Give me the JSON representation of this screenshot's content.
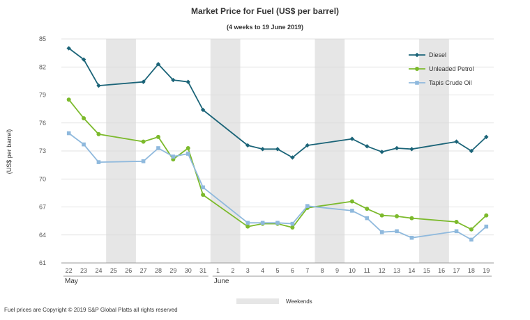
{
  "chart_data": {
    "type": "line",
    "title": "Market Price for Fuel (US$ per barrel)",
    "subtitle": "(4 weeks to 19 June 2019)",
    "ylabel": "(US$ per barrel)",
    "xlabel": "",
    "ylim": [
      61,
      85
    ],
    "yticks": [
      61,
      64,
      67,
      70,
      73,
      76,
      79,
      82,
      85
    ],
    "grid": true,
    "legend_position": "top-right",
    "categories": [
      "22",
      "23",
      "24",
      "25",
      "26",
      "27",
      "28",
      "29",
      "30",
      "31",
      "1",
      "2",
      "3",
      "4",
      "5",
      "6",
      "7",
      "8",
      "9",
      "10",
      "11",
      "12",
      "13",
      "14",
      "15",
      "16",
      "17",
      "18",
      "19"
    ],
    "months": [
      {
        "label": "May",
        "start_index": 0,
        "end_index": 9
      },
      {
        "label": "June",
        "start_index": 10,
        "end_index": 28
      }
    ],
    "weekend_ranges": [
      [
        3,
        4
      ],
      [
        10,
        11
      ],
      [
        17,
        18
      ],
      [
        24,
        25
      ]
    ],
    "series": [
      {
        "name": "Diesel",
        "color": "#1b6478",
        "marker": "diamond",
        "values": [
          84.0,
          82.8,
          80.0,
          null,
          null,
          80.4,
          82.3,
          80.6,
          80.4,
          77.4,
          null,
          null,
          73.6,
          73.2,
          73.2,
          72.3,
          73.6,
          null,
          null,
          74.3,
          73.5,
          72.9,
          73.3,
          73.2,
          null,
          null,
          74.0,
          73.0,
          74.5
        ]
      },
      {
        "name": "Unleaded Petrol",
        "color": "#7cba2c",
        "marker": "circle",
        "values": [
          78.5,
          76.5,
          74.8,
          null,
          null,
          74.0,
          74.5,
          72.1,
          73.3,
          68.3,
          null,
          null,
          64.9,
          65.2,
          65.2,
          64.8,
          66.9,
          null,
          null,
          67.6,
          66.8,
          66.1,
          66.0,
          65.8,
          null,
          null,
          65.4,
          64.6,
          66.1
        ]
      },
      {
        "name": "Tapis Crude Oil",
        "color": "#8fb9dd",
        "marker": "square",
        "values": [
          74.9,
          73.7,
          71.8,
          null,
          null,
          71.9,
          73.3,
          72.4,
          72.7,
          69.1,
          null,
          null,
          65.3,
          65.3,
          65.3,
          65.2,
          67.1,
          null,
          null,
          66.6,
          65.8,
          64.3,
          64.4,
          63.7,
          null,
          null,
          64.4,
          63.5,
          64.9
        ]
      }
    ],
    "weekend_legend_label": "Weekends",
    "footer": "Fuel prices are Copyright © 2019 S&P Global Platts all rights reserved"
  }
}
